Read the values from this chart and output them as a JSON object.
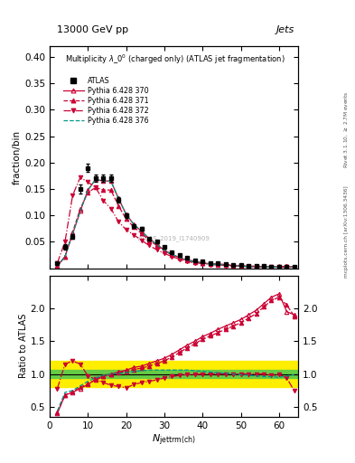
{
  "title_top": "13000 GeV pp",
  "title_right": "Jets",
  "main_title": "Multiplicity $\\lambda\\_0^0$ (charged only) (ATLAS jet fragmentation)",
  "ylabel_main": "fraction/bin",
  "ylabel_ratio": "Ratio to ATLAS",
  "xlabel": "$N_{\\mathrm{jettrm(ch)}}$",
  "right_label_top": "Rivet 3.1.10, $\\geq$ 2.7M events",
  "right_label_bottom": "mcplots.cern.ch [arXiv:1306.3436]",
  "watermark": "ATLAS_2019_I1740909",
  "xlim": [
    0,
    65
  ],
  "ylim_main": [
    0,
    0.42
  ],
  "ylim_ratio": [
    0.35,
    2.5
  ],
  "yticks_main": [
    0.05,
    0.1,
    0.15,
    0.2,
    0.25,
    0.3,
    0.35,
    0.4
  ],
  "yticks_ratio": [
    0.5,
    1.0,
    1.5,
    2.0
  ],
  "atlas_x": [
    2,
    4,
    6,
    8,
    10,
    12,
    14,
    16,
    18,
    20,
    22,
    24,
    26,
    28,
    30,
    32,
    34,
    36,
    38,
    40,
    42,
    44,
    46,
    48,
    50,
    52,
    54,
    56,
    58,
    60,
    62,
    64
  ],
  "atlas_y": [
    0.01,
    0.04,
    0.06,
    0.15,
    0.19,
    0.17,
    0.17,
    0.17,
    0.13,
    0.1,
    0.08,
    0.075,
    0.055,
    0.05,
    0.04,
    0.03,
    0.025,
    0.02,
    0.015,
    0.013,
    0.01,
    0.009,
    0.008,
    0.007,
    0.006,
    0.005,
    0.004,
    0.004,
    0.003,
    0.003,
    0.002,
    0.002
  ],
  "atlas_yerr": [
    0.002,
    0.005,
    0.005,
    0.008,
    0.008,
    0.007,
    0.007,
    0.007,
    0.005,
    0.004,
    0.003,
    0.003,
    0.002,
    0.002,
    0.002,
    0.001,
    0.001,
    0.001,
    0.001,
    0.001,
    0.001,
    0.0005,
    0.0005,
    0.0005,
    0.0005,
    0.0005,
    0.0003,
    0.0003,
    0.0003,
    0.0003,
    0.0002,
    0.0002
  ],
  "p370_x": [
    2,
    4,
    6,
    8,
    10,
    12,
    14,
    16,
    18,
    20,
    22,
    24,
    26,
    28,
    30,
    32,
    34,
    36,
    38,
    40,
    42,
    44,
    46,
    48,
    50,
    52,
    54,
    56,
    58,
    60,
    62,
    64
  ],
  "p370_y": [
    0.004,
    0.022,
    0.065,
    0.108,
    0.148,
    0.168,
    0.165,
    0.165,
    0.132,
    0.102,
    0.083,
    0.07,
    0.056,
    0.045,
    0.034,
    0.026,
    0.02,
    0.015,
    0.012,
    0.01,
    0.008,
    0.007,
    0.006,
    0.005,
    0.004,
    0.003,
    0.003,
    0.003,
    0.0025,
    0.002,
    0.0035,
    0.002
  ],
  "p371_x": [
    2,
    4,
    6,
    8,
    10,
    12,
    14,
    16,
    18,
    20,
    22,
    24,
    26,
    28,
    30,
    32,
    34,
    36,
    38,
    40,
    42,
    44,
    46,
    48,
    50,
    52,
    54,
    56,
    58,
    60,
    62,
    64
  ],
  "p371_y": [
    0.004,
    0.022,
    0.068,
    0.113,
    0.143,
    0.153,
    0.148,
    0.148,
    0.118,
    0.093,
    0.078,
    0.066,
    0.053,
    0.043,
    0.033,
    0.025,
    0.02,
    0.016,
    0.013,
    0.01,
    0.009,
    0.008,
    0.007,
    0.006,
    0.005,
    0.004,
    0.004,
    0.003,
    0.003,
    0.0025,
    0.004,
    0.002
  ],
  "p372_x": [
    2,
    4,
    6,
    8,
    10,
    12,
    14,
    16,
    18,
    20,
    22,
    24,
    26,
    28,
    30,
    32,
    34,
    36,
    38,
    40,
    42,
    44,
    46,
    48,
    50,
    52,
    54,
    56,
    58,
    60,
    62,
    64
  ],
  "p372_y": [
    0.01,
    0.05,
    0.138,
    0.172,
    0.163,
    0.153,
    0.128,
    0.113,
    0.088,
    0.073,
    0.063,
    0.053,
    0.043,
    0.035,
    0.028,
    0.022,
    0.017,
    0.013,
    0.01,
    0.009,
    0.007,
    0.006,
    0.005,
    0.004,
    0.004,
    0.003,
    0.003,
    0.0025,
    0.002,
    0.002,
    0.002,
    0.0015
  ],
  "p376_x": [
    2,
    4,
    6,
    8,
    10,
    12,
    14,
    16,
    18,
    20,
    22,
    24,
    26,
    28,
    30,
    32,
    34,
    36,
    38,
    40,
    42,
    44,
    46,
    48,
    50,
    52,
    54,
    56,
    58,
    60,
    62,
    64
  ],
  "p376_y": [
    0.004,
    0.022,
    0.065,
    0.108,
    0.148,
    0.168,
    0.165,
    0.165,
    0.132,
    0.102,
    0.083,
    0.07,
    0.056,
    0.045,
    0.034,
    0.026,
    0.02,
    0.015,
    0.012,
    0.01,
    0.008,
    0.007,
    0.006,
    0.005,
    0.004,
    0.003,
    0.003,
    0.003,
    0.0025,
    0.002,
    0.0035,
    0.002
  ],
  "ratio_p370_y": [
    0.4,
    0.68,
    0.72,
    0.78,
    0.84,
    0.92,
    0.97,
    1.0,
    1.03,
    1.06,
    1.1,
    1.12,
    1.16,
    1.2,
    1.24,
    1.3,
    1.37,
    1.44,
    1.5,
    1.57,
    1.62,
    1.68,
    1.73,
    1.78,
    1.83,
    1.9,
    1.97,
    2.07,
    2.17,
    2.22,
    1.95,
    1.9
  ],
  "ratio_p371_y": [
    0.42,
    0.68,
    0.73,
    0.8,
    0.85,
    0.91,
    0.96,
    0.99,
    1.02,
    1.04,
    1.07,
    1.09,
    1.12,
    1.16,
    1.2,
    1.26,
    1.33,
    1.4,
    1.46,
    1.53,
    1.58,
    1.63,
    1.68,
    1.73,
    1.78,
    1.85,
    1.92,
    2.02,
    2.12,
    2.17,
    2.05,
    1.88
  ],
  "ratio_p372_y": [
    0.78,
    1.15,
    1.2,
    1.15,
    0.97,
    0.92,
    0.87,
    0.83,
    0.81,
    0.79,
    0.84,
    0.87,
    0.89,
    0.91,
    0.94,
    0.96,
    0.98,
    0.99,
    0.99,
    1.0,
    1.0,
    1.0,
    1.0,
    1.0,
    1.0,
    1.0,
    1.0,
    1.0,
    0.98,
    0.99,
    0.94,
    0.74
  ],
  "ratio_p376_y": [
    0.44,
    0.72,
    0.75,
    0.82,
    0.89,
    0.94,
    0.98,
    1.0,
    1.01,
    1.02,
    1.04,
    1.05,
    1.06,
    1.06,
    1.06,
    1.06,
    1.06,
    1.06,
    1.05,
    1.04,
    1.03,
    1.02,
    1.01,
    1.0,
    0.99,
    0.98,
    0.97,
    0.96,
    0.96,
    0.95,
    0.97,
    0.99
  ],
  "green_band_x": [
    0,
    2,
    4,
    6,
    8,
    10,
    12,
    14,
    16,
    18,
    20,
    22,
    24,
    26,
    28,
    30,
    32,
    34,
    36,
    38,
    40,
    42,
    44,
    46,
    48,
    50,
    52,
    54,
    56,
    58,
    60,
    62,
    64,
    65
  ],
  "green_band_lo": [
    0.94,
    0.94,
    0.94,
    0.94,
    0.94,
    0.94,
    0.94,
    0.94,
    0.94,
    0.94,
    0.94,
    0.94,
    0.94,
    0.94,
    0.94,
    0.94,
    0.94,
    0.94,
    0.94,
    0.94,
    0.94,
    0.94,
    0.94,
    0.94,
    0.94,
    0.94,
    0.94,
    0.94,
    0.94,
    0.94,
    0.94,
    0.94,
    0.94,
    0.94
  ],
  "green_band_hi": [
    1.06,
    1.06,
    1.06,
    1.06,
    1.06,
    1.06,
    1.06,
    1.06,
    1.06,
    1.06,
    1.06,
    1.06,
    1.06,
    1.06,
    1.06,
    1.06,
    1.06,
    1.06,
    1.06,
    1.06,
    1.06,
    1.06,
    1.06,
    1.06,
    1.06,
    1.06,
    1.06,
    1.06,
    1.06,
    1.06,
    1.06,
    1.06,
    1.06,
    1.06
  ],
  "yellow_band_lo": [
    0.8,
    0.8,
    0.8,
    0.8,
    0.8,
    0.8,
    0.8,
    0.8,
    0.8,
    0.8,
    0.8,
    0.8,
    0.8,
    0.8,
    0.8,
    0.8,
    0.8,
    0.8,
    0.8,
    0.8,
    0.8,
    0.8,
    0.8,
    0.8,
    0.8,
    0.8,
    0.8,
    0.8,
    0.8,
    0.8,
    0.8,
    0.8,
    0.8,
    0.8
  ],
  "yellow_band_hi": [
    1.2,
    1.2,
    1.2,
    1.2,
    1.2,
    1.2,
    1.2,
    1.2,
    1.2,
    1.2,
    1.2,
    1.2,
    1.2,
    1.2,
    1.2,
    1.2,
    1.2,
    1.2,
    1.2,
    1.2,
    1.2,
    1.2,
    1.2,
    1.2,
    1.2,
    1.2,
    1.2,
    1.2,
    1.2,
    1.2,
    1.2,
    1.2,
    1.2,
    1.2
  ],
  "color_atlas": "black",
  "color_370": "#cc0033",
  "color_371": "#cc0033",
  "color_372": "#cc0033",
  "color_376": "#009988",
  "green_color": "#66cc44",
  "yellow_color": "#ffee00",
  "background_color": "white"
}
